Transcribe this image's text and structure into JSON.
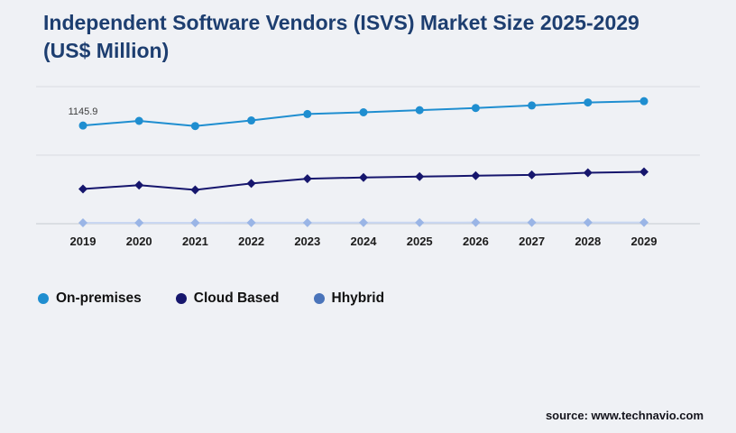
{
  "source": "source: www.technavio.com",
  "chart_data": {
    "type": "line",
    "title": "Independent Software Vendors (ISVS) Market Size 2025-2029 (US$ Million)",
    "xlabel": "",
    "ylabel": "US$ Million",
    "categories": [
      "2019",
      "2020",
      "2021",
      "2022",
      "2023",
      "2024",
      "2025",
      "2026",
      "2027",
      "2028",
      "2029"
    ],
    "ylim": [
      0,
      1600
    ],
    "gridlines": [
      0,
      800,
      1600
    ],
    "grid": true,
    "legend_position": "bottom-left",
    "series": [
      {
        "name": "On-premises",
        "color": "#1f8ed0",
        "marker": "circle",
        "values": [
          1145.9,
          1200,
          1140,
          1205,
          1280,
          1300,
          1325,
          1350,
          1380,
          1415,
          1430
        ]
      },
      {
        "name": "Cloud Based",
        "color": "#16166d",
        "marker": "diamond",
        "values": [
          405,
          450,
          395,
          470,
          525,
          540,
          550,
          560,
          570,
          595,
          605
        ]
      },
      {
        "name": "Hhybrid",
        "color": "#4a74ba",
        "line_color": "#c9d7f2",
        "marker_color": "#9ab5e6",
        "marker": "diamond",
        "values": [
          10,
          11,
          11,
          12,
          12,
          13,
          13,
          14,
          14,
          15,
          15
        ]
      }
    ],
    "annotations": [
      {
        "series": 0,
        "index": 0,
        "text": "1145.9"
      }
    ]
  }
}
